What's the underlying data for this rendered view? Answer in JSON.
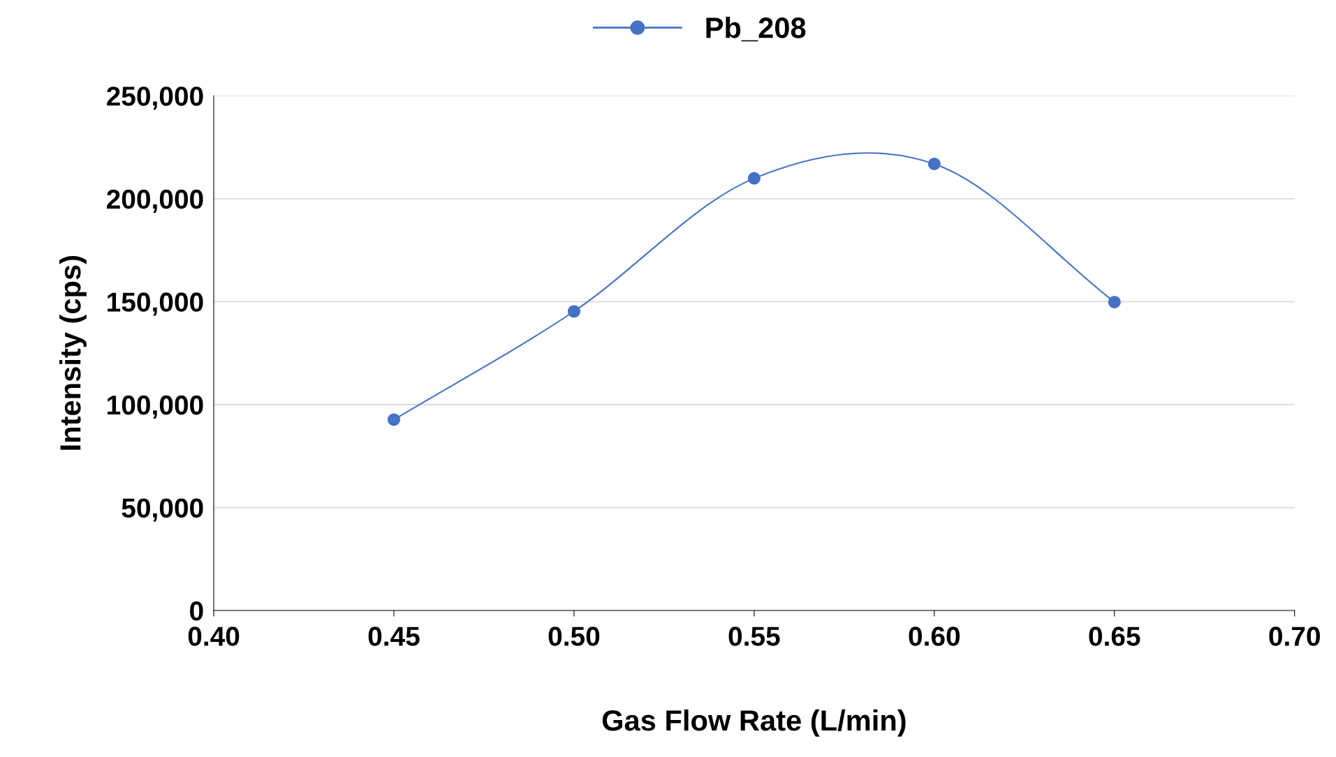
{
  "chart_data": {
    "type": "line",
    "xlabel": "Gas Flow Rate (L/min)",
    "ylabel": "Intensity (cps)",
    "x": [
      0.45,
      0.5,
      0.55,
      0.6,
      0.65
    ],
    "series": [
      {
        "name": "Pb_208",
        "color": "#4472c4",
        "values": [
          92700,
          145300,
          209900,
          216900,
          149800
        ]
      }
    ],
    "xlim": [
      0.4,
      0.7
    ],
    "xticks": [
      {
        "value": 0.4,
        "label": "0.40"
      },
      {
        "value": 0.45,
        "label": "0.45"
      },
      {
        "value": 0.5,
        "label": "0.50"
      },
      {
        "value": 0.55,
        "label": "0.55"
      },
      {
        "value": 0.6,
        "label": "0.60"
      },
      {
        "value": 0.65,
        "label": "0.65"
      },
      {
        "value": 0.7,
        "label": "0.70"
      }
    ],
    "ylim": [
      0,
      250000
    ],
    "yticks": [
      0,
      {
        "value": 50000,
        "label": "50,000"
      },
      {
        "value": 100000,
        "label": "100,000"
      },
      {
        "value": 150000,
        "label": "150,000"
      },
      {
        "value": 200000,
        "label": "200,000"
      },
      {
        "value": 250000,
        "label": "250,000"
      }
    ],
    "grid": "y",
    "legend": "top",
    "marker": "circle",
    "line_style": "solid"
  }
}
